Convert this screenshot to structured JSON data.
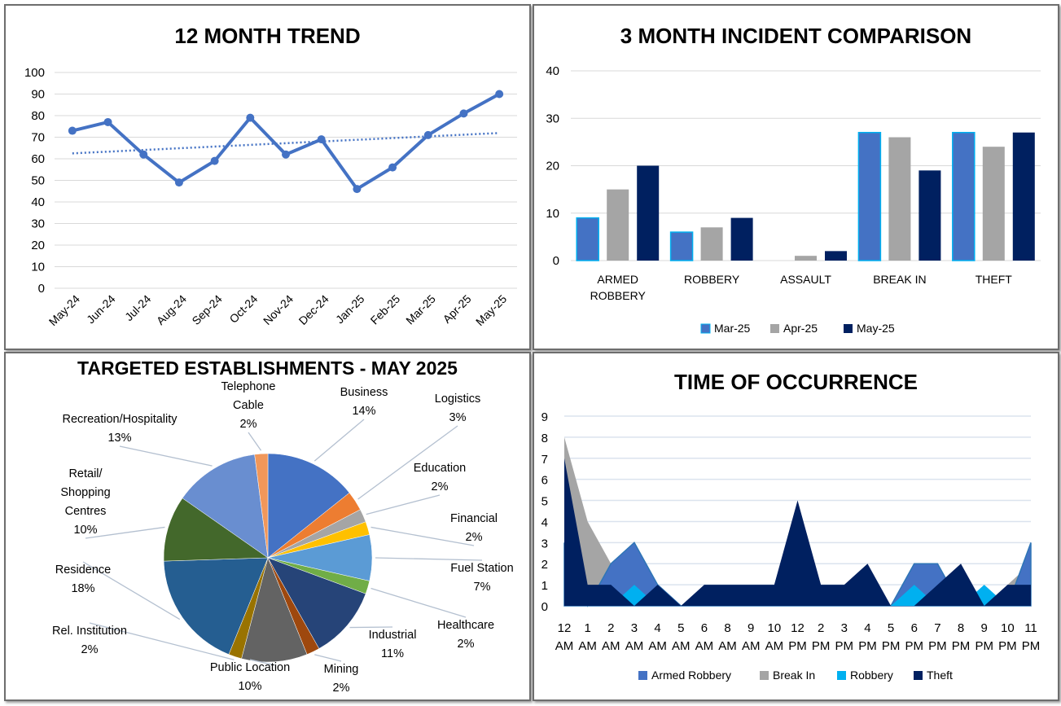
{
  "chart_data": [
    {
      "type": "line",
      "title": "12 MONTH TREND",
      "categories": [
        "May-24",
        "Jun-24",
        "Jul-24",
        "Aug-24",
        "Sep-24",
        "Oct-24",
        "Nov-24",
        "Dec-24",
        "Jan-25",
        "Feb-25",
        "Mar-25",
        "Apr-25",
        "May-25"
      ],
      "values": [
        73,
        77,
        62,
        49,
        59,
        79,
        62,
        69,
        46,
        56,
        71,
        81,
        90
      ],
      "trendline": "linear (dotted)",
      "ylim": [
        0,
        100
      ],
      "yticks": [
        0,
        10,
        20,
        30,
        40,
        50,
        60,
        70,
        80,
        90,
        100
      ],
      "grid": true,
      "color": "#4472C4"
    },
    {
      "type": "bar",
      "title": "3 MONTH INCIDENT COMPARISON",
      "categories": [
        "ARMED ROBBERY",
        "ROBBERY",
        "ASSAULT",
        "BREAK IN",
        "THEFT"
      ],
      "series": [
        {
          "name": "Mar-25",
          "values": [
            9,
            6,
            0,
            27,
            27
          ],
          "color": "#4472C4"
        },
        {
          "name": "Apr-25",
          "values": [
            15,
            7,
            1,
            26,
            24
          ],
          "color": "#A5A5A5"
        },
        {
          "name": "May-25",
          "values": [
            20,
            9,
            2,
            19,
            27
          ],
          "color": "#002060"
        }
      ],
      "ylim": [
        0,
        40
      ],
      "yticks": [
        0,
        10,
        20,
        30,
        40
      ],
      "legend": "bottom",
      "grid": true
    },
    {
      "type": "pie",
      "title": "TARGETED ESTABLISHMENTS - MAY 2025",
      "slices": [
        {
          "label": "Business",
          "value": 14,
          "color": "#4472C4"
        },
        {
          "label": "Logistics",
          "value": 3,
          "color": "#ED7D31"
        },
        {
          "label": "Education",
          "value": 2,
          "color": "#A5A5A5"
        },
        {
          "label": "Financial",
          "value": 2,
          "color": "#FFC000"
        },
        {
          "label": "Fuel Station",
          "value": 7,
          "color": "#5B9BD5"
        },
        {
          "label": "Healthcare",
          "value": 2,
          "color": "#70AD47"
        },
        {
          "label": "Industrial",
          "value": 11,
          "color": "#264478"
        },
        {
          "label": "Mining",
          "value": 2,
          "color": "#9E480E"
        },
        {
          "label": "Public Location",
          "value": 10,
          "color": "#636363"
        },
        {
          "label": "Rel. Institution",
          "value": 2,
          "color": "#997300"
        },
        {
          "label": "Residence",
          "value": 18,
          "color": "#255E91"
        },
        {
          "label": "Retail/ Shopping Centres",
          "value": 10,
          "color": "#43682B"
        },
        {
          "label": "Recreation/Hospitality",
          "value": 13,
          "color": "#698ED0"
        },
        {
          "label": "Telephone Cable",
          "value": 2,
          "color": "#F1975A"
        }
      ]
    },
    {
      "type": "area",
      "title": "TIME OF OCCURRENCE",
      "categories": [
        "12 AM",
        "1 AM",
        "2 AM",
        "3 AM",
        "4 AM",
        "5 AM",
        "6 AM",
        "8 AM",
        "9 AM",
        "10 AM",
        "12 PM",
        "2 PM",
        "3 PM",
        "4 PM",
        "5 PM",
        "6 PM",
        "7 PM",
        "8 PM",
        "9 PM",
        "10 PM",
        "11 PM"
      ],
      "series": [
        {
          "name": "Armed Robbery",
          "values": [
            3,
            0,
            2,
            3,
            1,
            0,
            0,
            0,
            0,
            0,
            0,
            0,
            0,
            0,
            0,
            2,
            2,
            0,
            0,
            0,
            3
          ],
          "color": "#4472C4"
        },
        {
          "name": "Break In",
          "values": [
            8,
            4,
            2,
            0,
            0,
            0,
            0,
            0,
            0,
            0,
            0,
            0,
            0,
            0,
            0,
            0,
            0,
            0,
            0,
            1,
            2
          ],
          "color": "#A5A5A5"
        },
        {
          "name": "Robbery",
          "values": [
            0,
            0,
            0,
            1,
            0,
            0,
            0,
            0,
            0,
            0,
            0,
            0,
            0,
            0,
            0,
            1,
            0,
            0,
            1,
            0,
            0
          ],
          "color": "#00B0F0"
        },
        {
          "name": "Theft",
          "values": [
            7,
            1,
            1,
            0,
            1,
            0,
            1,
            1,
            1,
            1,
            5,
            1,
            1,
            2,
            0,
            0,
            1,
            2,
            0,
            1,
            1
          ],
          "color": "#002060"
        }
      ],
      "ylim": [
        0,
        9
      ],
      "yticks": [
        0,
        1,
        2,
        3,
        4,
        5,
        6,
        7,
        8,
        9
      ],
      "legend": "bottom",
      "grid": true
    }
  ]
}
